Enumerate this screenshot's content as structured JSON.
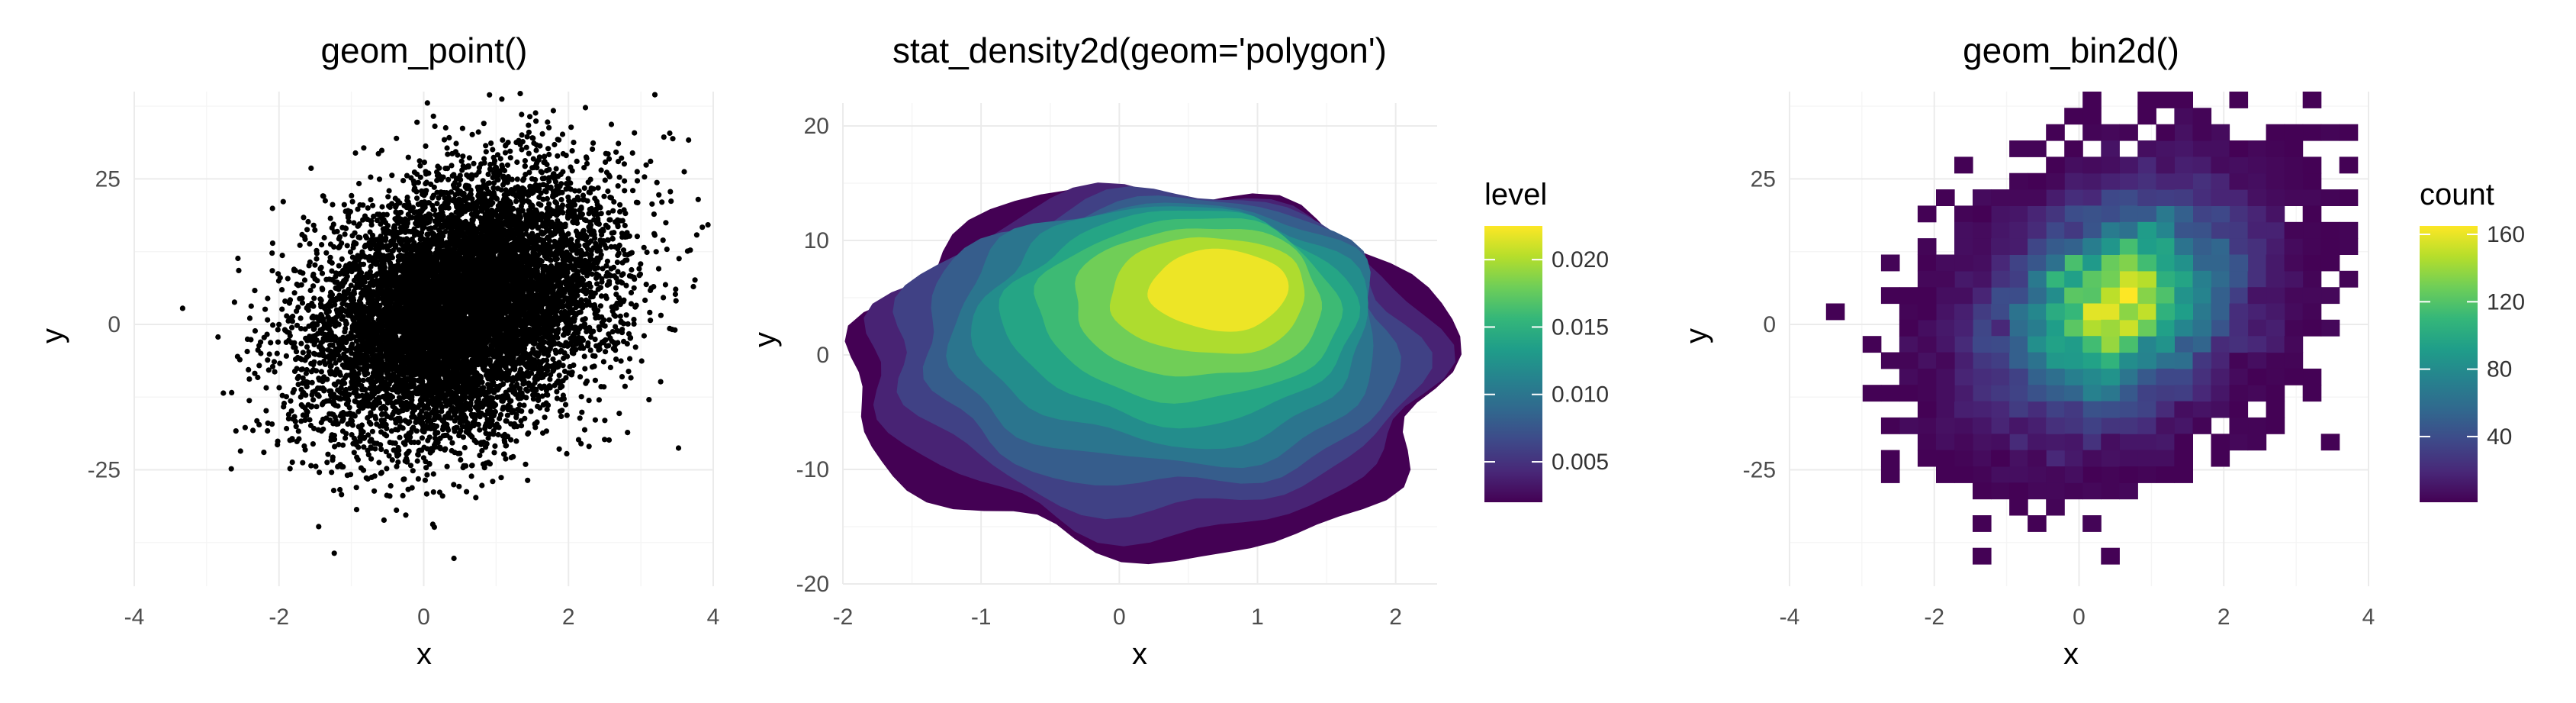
{
  "colors": {
    "point": "#000000",
    "viridis": [
      "#440154",
      "#482878",
      "#3e4989",
      "#31688e",
      "#26828e",
      "#1f9e89",
      "#35b779",
      "#6ece58",
      "#b5de2b",
      "#fde725"
    ],
    "grid_major": "#ebebeb",
    "grid_minor": "#f5f5f5"
  },
  "chart_data": [
    {
      "type": "scatter",
      "geom": "point",
      "title": "geom_point()",
      "xlabel": "x",
      "ylabel": "y",
      "xlim": [
        -4,
        4
      ],
      "ylim": [
        -45,
        40
      ],
      "xticks": [
        -4,
        -2,
        0,
        2,
        4
      ],
      "xtick_labels": [
        "-4",
        "-2",
        "0",
        "2",
        "4"
      ],
      "yticks": [
        -25,
        0,
        25
      ],
      "ytick_labels": [
        "-25",
        "0",
        "25"
      ],
      "grid": true,
      "legend": "none",
      "points_summary": {
        "n": 10000,
        "x_center": 0.5,
        "y_center": 3,
        "x_range": [
          -3.7,
          3.7
        ],
        "y_range": [
          -43,
          39
        ]
      }
    },
    {
      "type": "heatmap",
      "geom": "density2d_polygon",
      "title": "stat_density2d(geom='polygon')",
      "xlabel": "x",
      "ylabel": "y",
      "xlim": [
        -2,
        2.3
      ],
      "ylim": [
        -20,
        22
      ],
      "xticks": [
        -2,
        -1,
        0,
        1,
        2
      ],
      "xtick_labels": [
        "-2",
        "-1",
        "0",
        "1",
        "2"
      ],
      "yticks": [
        -20,
        -10,
        0,
        10,
        20
      ],
      "ytick_labels": [
        "-20",
        "-10",
        "0",
        "10",
        "20"
      ],
      "grid": true,
      "legend": "right",
      "legend_title": "level",
      "legend_range": [
        0.002,
        0.0225
      ],
      "legend_ticks": [
        0.005,
        0.01,
        0.015,
        0.02
      ],
      "legend_tick_labels": [
        "0.005",
        "0.010",
        "0.015",
        "0.020"
      ],
      "peak": {
        "x": 0.8,
        "y": 6,
        "level": 0.0225
      },
      "contour_levels": [
        0.002,
        0.004,
        0.006,
        0.008,
        0.01,
        0.012,
        0.014,
        0.016,
        0.018,
        0.02,
        0.022
      ]
    },
    {
      "type": "heatmap",
      "geom": "bin2d",
      "title": "geom_bin2d()",
      "xlabel": "x",
      "ylabel": "y",
      "xlim": [
        -4,
        4
      ],
      "ylim": [
        -45,
        40
      ],
      "xticks": [
        -4,
        -2,
        0,
        2,
        4
      ],
      "xtick_labels": [
        "-4",
        "-2",
        "0",
        "2",
        "4"
      ],
      "yticks": [
        -25,
        0,
        25
      ],
      "ytick_labels": [
        "-25",
        "0",
        "25"
      ],
      "grid": true,
      "legend": "right",
      "legend_title": "count",
      "legend_range": [
        1,
        165
      ],
      "legend_ticks": [
        40,
        80,
        120,
        160
      ],
      "legend_tick_labels": [
        "40",
        "80",
        "120",
        "160"
      ],
      "bins": 30,
      "peak": {
        "x": 0.8,
        "y": 6,
        "count": 165
      }
    }
  ]
}
